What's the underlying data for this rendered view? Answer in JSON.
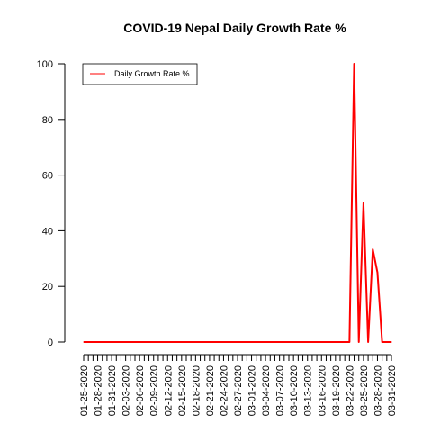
{
  "chart_data": {
    "type": "line",
    "title": "COVID-19 Nepal Daily Growth Rate %",
    "xlabel": "",
    "ylabel": "",
    "ylim": [
      0,
      100
    ],
    "yticks": [
      0,
      20,
      40,
      60,
      80,
      100
    ],
    "grid": false,
    "legend_position": "top-left",
    "x_start": "01-25-2020",
    "x_end": "03-31-2020",
    "x_labels": [
      "01-25-2020",
      "01-28-2020",
      "01-31-2020",
      "02-03-2020",
      "02-06-2020",
      "02-09-2020",
      "02-12-2020",
      "02-15-2020",
      "02-18-2020",
      "02-21-2020",
      "02-24-2020",
      "02-27-2020",
      "03-01-2020",
      "03-04-2020",
      "03-07-2020",
      "03-10-2020",
      "03-13-2020",
      "03-16-2020",
      "03-19-2020",
      "03-22-2020",
      "03-25-2020",
      "03-28-2020",
      "03-31-2020"
    ],
    "series": [
      {
        "name": "Daily Growth Rate %",
        "color": "#ff0000",
        "points": [
          {
            "x": "01-25-2020",
            "y": 0
          },
          {
            "x": "03-22-2020",
            "y": 0
          },
          {
            "x": "03-23-2020",
            "y": 100
          },
          {
            "x": "03-24-2020",
            "y": 0
          },
          {
            "x": "03-25-2020",
            "y": 50
          },
          {
            "x": "03-26-2020",
            "y": 0
          },
          {
            "x": "03-27-2020",
            "y": 33.3
          },
          {
            "x": "03-28-2020",
            "y": 25
          },
          {
            "x": "03-29-2020",
            "y": 0
          },
          {
            "x": "03-30-2020",
            "y": 0
          },
          {
            "x": "03-31-2020",
            "y": 0
          }
        ]
      }
    ]
  }
}
